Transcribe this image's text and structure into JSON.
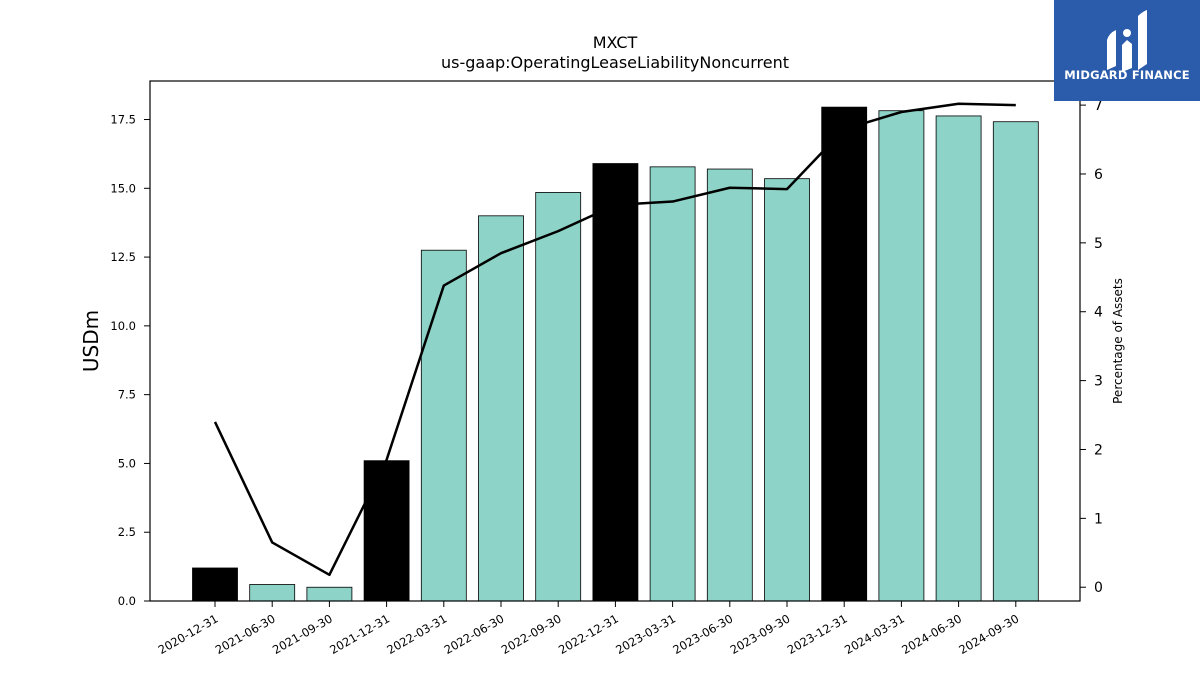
{
  "logo": {
    "text": "MIDGARD FINANCE",
    "icon": "midgard-logo-icon",
    "background": "#2b5bab"
  },
  "chart_data": {
    "type": "bar",
    "title": "MXCT",
    "subtitle": "us-gaap:OperatingLeaseLiabilityNoncurrent",
    "ylabel": "USDm",
    "y2label": "Percentage of Assets",
    "categories": [
      "2020-12-31",
      "2021-06-30",
      "2021-09-30",
      "2021-12-31",
      "2022-03-31",
      "2022-06-30",
      "2022-09-30",
      "2022-12-31",
      "2023-03-31",
      "2023-06-30",
      "2023-09-30",
      "2023-12-31",
      "2024-03-31",
      "2024-06-30",
      "2024-09-30"
    ],
    "series": [
      {
        "type": "bar",
        "values": [
          1.2,
          0.6,
          0.5,
          5.1,
          12.75,
          14.0,
          14.85,
          15.9,
          15.78,
          15.7,
          15.35,
          17.95,
          17.82,
          17.63,
          17.42
        ],
        "colors": [
          "#000000",
          "#8dd3c7",
          "#8dd3c7",
          "#000000",
          "#8dd3c7",
          "#8dd3c7",
          "#8dd3c7",
          "#000000",
          "#8dd3c7",
          "#8dd3c7",
          "#8dd3c7",
          "#000000",
          "#8dd3c7",
          "#8dd3c7",
          "#8dd3c7"
        ]
      },
      {
        "type": "line",
        "axis": "right",
        "color": "#000000",
        "values": [
          2.4,
          0.65,
          0.18,
          1.85,
          4.38,
          4.85,
          5.17,
          5.55,
          5.6,
          5.8,
          5.78,
          6.65,
          6.9,
          7.02,
          7.0
        ]
      }
    ],
    "ylim": [
      0,
      18.9
    ],
    "y2lim": [
      -0.2,
      7.35
    ],
    "yticks": [
      "0.0",
      "2.5",
      "5.0",
      "7.5",
      "10.0",
      "12.5",
      "15.0",
      "17.5"
    ],
    "y2ticks": [
      "0",
      "1",
      "2",
      "3",
      "4",
      "5",
      "6",
      "7"
    ],
    "grid": false,
    "legend": "none"
  }
}
